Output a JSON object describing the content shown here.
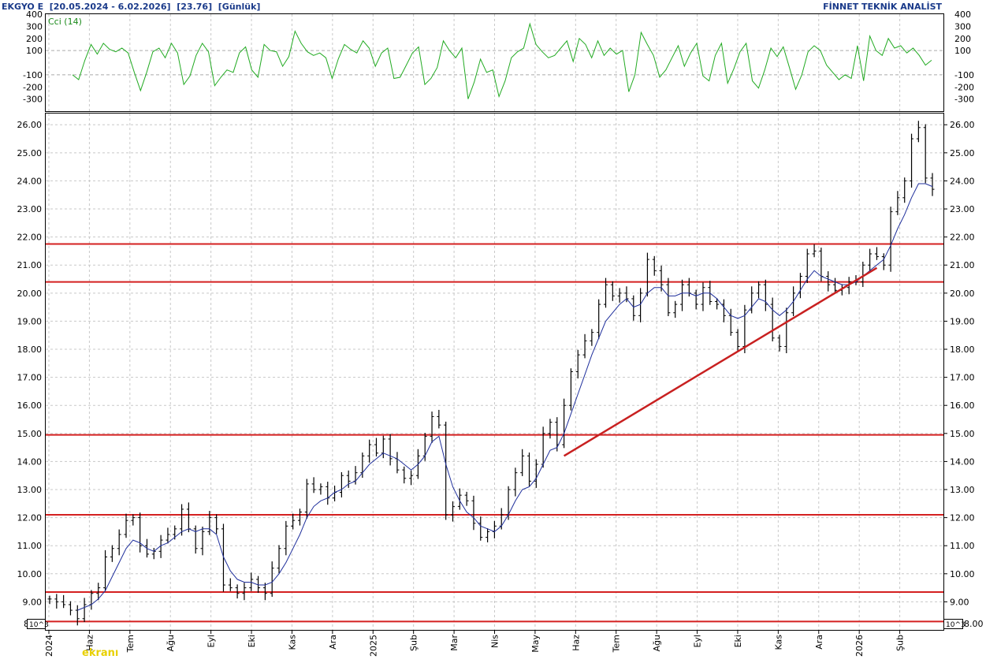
{
  "header": {
    "title": "EKGYO E",
    "date_range": "[20.05.2024 - 6.02.2026]",
    "last_value": "[23.76]",
    "period": "[Günlük]",
    "provider": "FİNNET TEKNİK ANALİST"
  },
  "unit_label": "10^3",
  "watermark": "ekranı",
  "colors": {
    "grid": "#c8c8c8",
    "price_bars": "#000000",
    "moving_average": "#1f2f9c",
    "cci": "#22aa22",
    "support_resistance": "#d42020",
    "trendline": "#c82020",
    "header_text": "#1a3a8a"
  },
  "chart_data": [
    {
      "type": "line",
      "name": "cci-panel",
      "indicator_label": "Cci (14)",
      "ylim": [
        -400,
        400
      ],
      "yticks": [
        -300,
        -200,
        -100,
        100,
        200,
        300,
        400
      ],
      "ytick_labels": [
        "-300",
        "-200",
        "-100",
        "100",
        "200",
        "300",
        "400"
      ],
      "reference_lines": [
        100,
        -100
      ],
      "grid": true,
      "series": [
        {
          "values": [
            -100,
            -140,
            20,
            150,
            70,
            160,
            110,
            90,
            120,
            80,
            -80,
            -230,
            -80,
            90,
            120,
            40,
            160,
            80,
            -180,
            -110,
            60,
            160,
            90,
            -190,
            -120,
            -60,
            -80,
            80,
            130,
            -60,
            -120,
            150,
            100,
            90,
            -30,
            50,
            260,
            160,
            90,
            60,
            80,
            40,
            -130,
            30,
            150,
            110,
            80,
            180,
            120,
            -30,
            80,
            120,
            -130,
            -120,
            -20,
            80,
            130,
            -180,
            -130,
            -40,
            180,
            100,
            40,
            120,
            -300,
            -160,
            30,
            -80,
            -60,
            -280,
            -150,
            40,
            90,
            120,
            320,
            150,
            90,
            40,
            60,
            120,
            180,
            10,
            200,
            150,
            40,
            180,
            60,
            120,
            70,
            100,
            -240,
            -100,
            250,
            150,
            60,
            -120,
            -60,
            40,
            140,
            -30,
            80,
            160,
            -110,
            -150,
            60,
            160,
            -170,
            -50,
            90,
            160,
            -150,
            -210,
            -60,
            120,
            50,
            130,
            -40,
            -220,
            -100,
            90,
            140,
            100,
            -20,
            -80,
            -140,
            -100,
            -130,
            140,
            -150,
            220,
            100,
            60,
            200,
            120,
            140,
            80,
            120,
            60,
            -20,
            20
          ]
        }
      ]
    },
    {
      "type": "bar",
      "name": "price-panel",
      "bar_style": "ohlc",
      "ylim": [
        8.0,
        26.4
      ],
      "yticks": [
        9,
        10,
        11,
        12,
        13,
        14,
        15,
        16,
        17,
        18,
        19,
        20,
        21,
        22,
        23,
        24,
        25,
        26
      ],
      "ytick_labels": [
        "9.00",
        "10.00",
        "11.00",
        "12.00",
        "13.00",
        "14.00",
        "15.00",
        "16.00",
        "17.00",
        "18.00",
        "19.00",
        "20.00",
        "21.00",
        "22.00",
        "23.00",
        "24.00",
        "25.00",
        "26.00"
      ],
      "bottom_labels": {
        "left": "8",
        "right": "8.00"
      },
      "x_labels": [
        "2024",
        "Haz",
        "Tem",
        "Ağu",
        "Eyl",
        "Eki",
        "Kas",
        "Ara",
        "2025",
        "Şub",
        "Mar",
        "Nis",
        "May",
        "Haz",
        "Tem",
        "Ağu",
        "Eyl",
        "Eki",
        "Kas",
        "Ara",
        "2026",
        "Şub"
      ],
      "grid": true,
      "series": [
        {
          "name": "price",
          "values": [
            9.1,
            9.0,
            8.9,
            8.7,
            8.4,
            8.9,
            9.3,
            9.5,
            10.6,
            10.9,
            11.4,
            11.9,
            12.0,
            11.0,
            10.7,
            10.8,
            11.2,
            11.4,
            11.6,
            12.3,
            11.6,
            10.9,
            11.5,
            12.0,
            11.6,
            9.6,
            9.5,
            9.3,
            9.5,
            9.8,
            9.5,
            9.3,
            10.2,
            10.9,
            11.7,
            11.9,
            12.2,
            13.2,
            13.0,
            13.1,
            12.7,
            12.9,
            13.5,
            13.3,
            13.6,
            14.2,
            14.6,
            14.3,
            14.8,
            14.1,
            13.7,
            13.4,
            13.5,
            14.2,
            14.9,
            15.6,
            15.3,
            12.1,
            12.4,
            12.8,
            12.6,
            11.8,
            11.3,
            11.5,
            11.7,
            12.1,
            13.0,
            13.6,
            14.2,
            13.3,
            13.9,
            15.0,
            15.4,
            14.6,
            16.0,
            17.2,
            17.8,
            18.3,
            18.6,
            19.6,
            20.3,
            19.9,
            20.0,
            19.8,
            19.2,
            20.0,
            21.2,
            20.8,
            20.3,
            19.3,
            19.6,
            20.3,
            20.0,
            19.6,
            20.2,
            19.7,
            19.6,
            19.2,
            18.6,
            18.1,
            19.4,
            20.0,
            20.3,
            19.6,
            18.4,
            18.1,
            19.3,
            20.0,
            20.6,
            21.4,
            21.5,
            20.6,
            20.3,
            20.1,
            20.2,
            20.4,
            20.4,
            21.0,
            21.4,
            21.3,
            21.0,
            22.9,
            23.4,
            24.0,
            25.5,
            25.9,
            24.1,
            23.7
          ]
        },
        {
          "name": "moving-average",
          "values": [
            null,
            null,
            null,
            null,
            8.7,
            8.8,
            8.9,
            9.1,
            9.4,
            9.9,
            10.4,
            10.9,
            11.2,
            11.1,
            10.9,
            10.8,
            11.0,
            11.1,
            11.3,
            11.5,
            11.6,
            11.5,
            11.6,
            11.6,
            11.4,
            10.6,
            10.1,
            9.8,
            9.7,
            9.7,
            9.6,
            9.6,
            9.7,
            10.0,
            10.4,
            10.9,
            11.4,
            12.0,
            12.4,
            12.6,
            12.7,
            12.9,
            13.0,
            13.2,
            13.3,
            13.6,
            13.9,
            14.1,
            14.3,
            14.2,
            14.1,
            13.9,
            13.7,
            13.9,
            14.2,
            14.7,
            14.9,
            13.9,
            13.1,
            12.6,
            12.2,
            12.0,
            11.7,
            11.6,
            11.5,
            11.7,
            12.1,
            12.6,
            13.0,
            13.1,
            13.4,
            13.9,
            14.4,
            14.5,
            15.0,
            15.7,
            16.4,
            17.1,
            17.8,
            18.4,
            19.0,
            19.3,
            19.6,
            19.8,
            19.5,
            19.6,
            20.0,
            20.2,
            20.2,
            19.9,
            19.9,
            20.0,
            20.0,
            19.9,
            20.0,
            20.0,
            19.8,
            19.5,
            19.2,
            19.1,
            19.2,
            19.5,
            19.8,
            19.7,
            19.4,
            19.2,
            19.4,
            19.7,
            20.1,
            20.5,
            20.8,
            20.6,
            20.5,
            20.4,
            20.3,
            20.3,
            20.4,
            20.6,
            20.8,
            21.0,
            21.2,
            21.7,
            22.3,
            22.8,
            23.4,
            23.9,
            23.9,
            23.8
          ]
        }
      ],
      "horizontal_levels": [
        8.3,
        9.35,
        12.1,
        14.95,
        20.4,
        21.75
      ],
      "trendline": {
        "from": {
          "x_index": 74,
          "y": 14.2
        },
        "to": {
          "x_index": 119,
          "y": 20.9
        }
      }
    }
  ]
}
